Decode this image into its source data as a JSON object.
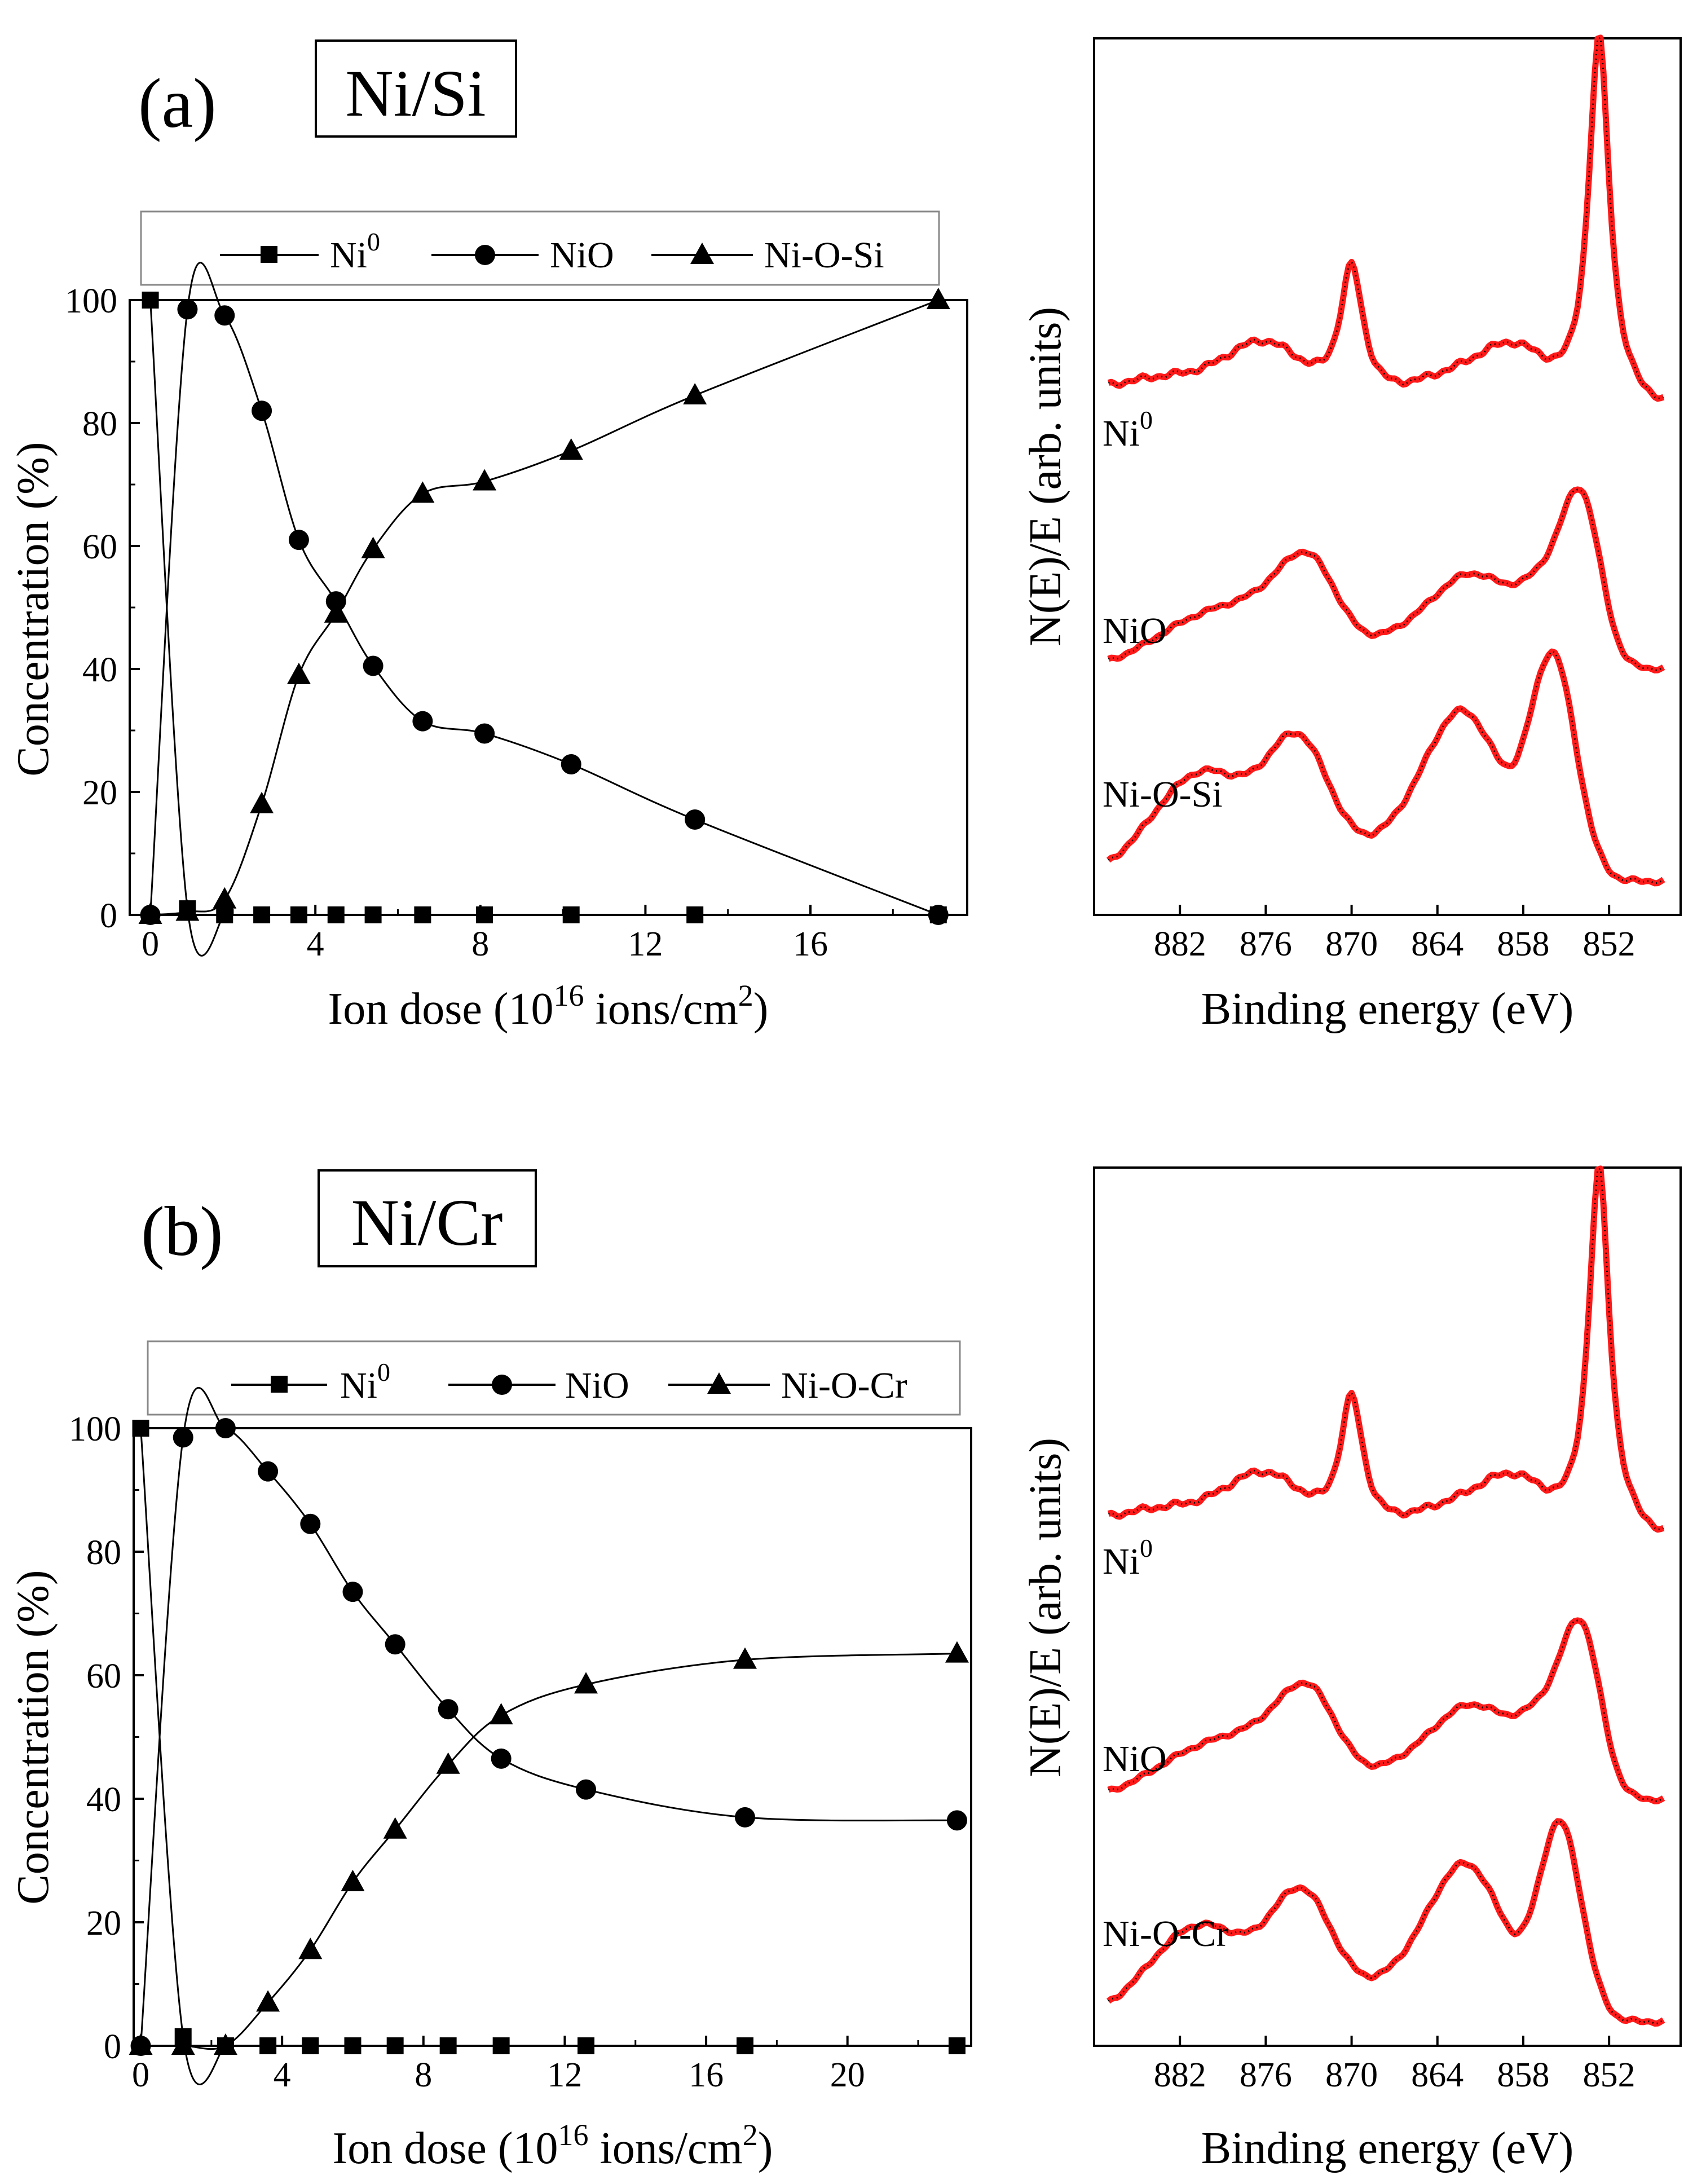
{
  "colors": {
    "fit_curve": "#000000",
    "spectrum_points": "#ff1a1a",
    "frame": "#000000"
  },
  "chart_data": [
    {
      "id": "a-conc",
      "type": "scatter",
      "panel_label": "(a)",
      "system_label": "Ni/Si",
      "xlabel": "Ion dose (10^16 ions/cm^2)",
      "ylabel": "Concentration (%)",
      "xlim": [
        -0.5,
        19.8
      ],
      "ylim": [
        0,
        100
      ],
      "xticks": [
        "0",
        "4",
        "8",
        "12",
        "16"
      ],
      "yticks": [
        "0",
        "20",
        "40",
        "60",
        "80",
        "100"
      ],
      "legend": [
        "Ni0",
        "NiO",
        "Ni-O-Si"
      ],
      "series": [
        {
          "name": "Ni0",
          "marker": "square",
          "x": [
            0,
            0.9,
            1.8,
            2.7,
            3.6,
            4.5,
            5.4,
            6.6,
            8.1,
            10.2,
            13.2,
            19.1
          ],
          "values": [
            100,
            1,
            0,
            0,
            0,
            0,
            0,
            0,
            0,
            0,
            0,
            0
          ]
        },
        {
          "name": "NiO",
          "marker": "circle",
          "x": [
            0,
            0.9,
            1.8,
            2.7,
            3.6,
            4.5,
            5.4,
            6.6,
            8.1,
            10.2,
            13.2,
            19.1
          ],
          "values": [
            0,
            98.5,
            97.5,
            82,
            61,
            51,
            40.5,
            31.5,
            29.5,
            24.5,
            15.5,
            0
          ]
        },
        {
          "name": "Ni-O-Si",
          "marker": "triangle",
          "x": [
            0,
            0.9,
            1.8,
            2.7,
            3.6,
            4.5,
            5.4,
            6.6,
            8.1,
            10.2,
            13.2,
            19.1
          ],
          "values": [
            0,
            0.5,
            2.5,
            18,
            39,
            49,
            59.5,
            68.5,
            70.5,
            75.5,
            84.5,
            100
          ]
        }
      ]
    },
    {
      "id": "a-xps",
      "type": "line",
      "xlabel": "Binding energy (eV)",
      "ylabel": "N(E)/E (arb. units)",
      "xlim": [
        888,
        847
      ],
      "xticks": [
        "882",
        "876",
        "870",
        "864",
        "858",
        "852"
      ],
      "series": [
        {
          "name": "Ni0",
          "label": "Ni0",
          "offset": 2.0,
          "peak_scale": 1.0
        },
        {
          "name": "NiO",
          "label": "NiO",
          "offset": 1.0,
          "peak_scale": 0.68
        },
        {
          "name": "Ni-O-Si",
          "label": "Ni-O-Si",
          "offset": 0.0,
          "peak_scale": 0.77
        }
      ]
    },
    {
      "id": "b-conc",
      "type": "scatter",
      "panel_label": "(b)",
      "system_label": "Ni/Cr",
      "xlabel": "Ion dose (10^16 ions/cm^2)",
      "ylabel": "Concentration (%)",
      "xlim": [
        -0.2,
        23.5
      ],
      "ylim": [
        0,
        100
      ],
      "xticks": [
        "0",
        "4",
        "8",
        "12",
        "16",
        "20"
      ],
      "yticks": [
        "0",
        "20",
        "40",
        "60",
        "80",
        "100"
      ],
      "legend": [
        "Ni0",
        "NiO",
        "Ni-O-Cr"
      ],
      "series": [
        {
          "name": "Ni0",
          "marker": "square",
          "x": [
            0,
            1.2,
            2.4,
            3.6,
            4.8,
            6.0,
            7.2,
            8.7,
            10.2,
            12.6,
            17.1,
            23.1
          ],
          "values": [
            100,
            1.5,
            0,
            0,
            0,
            0,
            0,
            0,
            0,
            0,
            0,
            0
          ]
        },
        {
          "name": "NiO",
          "marker": "circle",
          "x": [
            0,
            1.2,
            2.4,
            3.6,
            4.8,
            6.0,
            7.2,
            8.7,
            10.2,
            12.6,
            17.1,
            23.1
          ],
          "values": [
            0,
            98.5,
            100,
            93,
            84.5,
            73.5,
            65,
            54.5,
            46.5,
            41.5,
            37,
            36.5
          ]
        },
        {
          "name": "Ni-O-Cr",
          "marker": "triangle",
          "x": [
            0,
            1.2,
            2.4,
            3.6,
            4.8,
            6.0,
            7.2,
            8.7,
            10.2,
            12.6,
            17.1,
            23.1
          ],
          "values": [
            0,
            0,
            0,
            7,
            15.5,
            26.5,
            35,
            45.5,
            53.5,
            58.5,
            62.5,
            63.5
          ]
        }
      ]
    },
    {
      "id": "b-xps",
      "type": "line",
      "xlabel": "Binding energy (eV)",
      "ylabel": "N(E)/E (arb. units)",
      "xlim": [
        888,
        847
      ],
      "xticks": [
        "882",
        "876",
        "870",
        "864",
        "858",
        "852"
      ],
      "series": [
        {
          "name": "Ni0",
          "label": "Ni0",
          "offset": 2.0,
          "peak_scale": 1.0
        },
        {
          "name": "NiO",
          "label": "NiO",
          "offset": 1.0,
          "peak_scale": 0.68
        },
        {
          "name": "Ni-O-Cr",
          "label": "Ni-O-Cr",
          "offset": 0.0,
          "peak_scale": 0.72
        }
      ]
    }
  ]
}
